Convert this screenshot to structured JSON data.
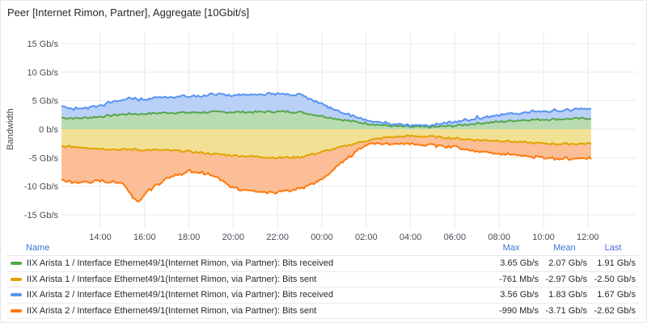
{
  "panel": {
    "title": "Peer [Internet Rimon, Partner], Aggregate [10Gbit/s]"
  },
  "chart_data": {
    "type": "area",
    "stacked": true,
    "title": "Peer [Internet Rimon, Partner], Aggregate [10Gbit/s]",
    "ylabel": "Bandwidth",
    "xlabel": "",
    "unit": "Gb/s",
    "ylim": [
      -17,
      17
    ],
    "grid": true,
    "legend_position": "bottom",
    "y_ticks": [
      15,
      10,
      5,
      0,
      -5,
      -10,
      -15
    ],
    "y_tick_labels": [
      "15 Gb/s",
      "10 Gb/s",
      "5 Gb/s",
      "0 b/s",
      "-5 Gb/s",
      "-10 Gb/s",
      "-15 Gb/s"
    ],
    "x_hours": [
      12.25,
      13,
      14,
      15,
      15.6,
      15.8,
      16,
      17,
      18,
      19,
      20,
      21,
      22,
      23,
      24,
      25,
      26,
      27,
      28,
      29,
      30,
      31,
      32,
      33,
      34,
      35,
      36.15
    ],
    "x_ticks": [
      14,
      16,
      18,
      20,
      22,
      24,
      26,
      28,
      30,
      32,
      34,
      36
    ],
    "x_tick_labels": [
      "14:00",
      "16:00",
      "18:00",
      "20:00",
      "22:00",
      "00:00",
      "02:00",
      "04:00",
      "06:00",
      "08:00",
      "10:00",
      "12:00"
    ],
    "series": [
      {
        "name": "IIX Arista 1 / Interface Ethernet49/1(Internet Rimon, via Partner): Bits received",
        "color": "#56a64b",
        "fill": "#b5d9ae",
        "stack": "positive",
        "values": [
          2.0,
          1.9,
          2.2,
          2.6,
          2.7,
          2.6,
          2.7,
          2.9,
          2.9,
          3.0,
          3.0,
          3.0,
          3.1,
          3.0,
          2.3,
          1.6,
          1.0,
          0.6,
          0.4,
          0.4,
          0.6,
          1.0,
          1.3,
          1.6,
          1.7,
          1.8,
          1.9
        ]
      },
      {
        "name": "IIX Arista 1 / Interface Ethernet49/1(Internet Rimon, via Partner): Bits sent",
        "color": "#e0a400",
        "fill": "#f1de8e",
        "stack": "negative",
        "values": [
          -3.0,
          -3.1,
          -3.4,
          -3.6,
          -3.5,
          -3.7,
          -3.6,
          -3.7,
          -3.9,
          -4.3,
          -4.6,
          -4.8,
          -5.0,
          -4.9,
          -4.0,
          -3.0,
          -2.0,
          -1.4,
          -1.2,
          -1.3,
          -1.6,
          -1.9,
          -2.0,
          -2.3,
          -2.5,
          -2.6,
          -2.5
        ]
      },
      {
        "name": "IIX Arista 2 / Interface Ethernet49/1(Internet Rimon, via Partner): Bits received",
        "color": "#5794f2",
        "fill": "#b5cef7",
        "stack": "positive",
        "values": [
          2.0,
          1.6,
          2.0,
          2.6,
          2.7,
          2.6,
          2.6,
          2.8,
          2.9,
          3.0,
          3.0,
          3.1,
          3.2,
          3.1,
          2.2,
          1.2,
          0.7,
          0.3,
          0.2,
          0.3,
          0.7,
          1.0,
          1.2,
          1.3,
          1.5,
          1.5,
          1.7
        ]
      },
      {
        "name": "IIX Arista 2 / Interface Ethernet49/1(Internet Rimon, via Partner): Bits sent",
        "color": "#ff780a",
        "fill": "#fcba90",
        "stack": "negative",
        "values": [
          -6.0,
          -6.2,
          -5.6,
          -5.8,
          -9.2,
          -9.0,
          -7.6,
          -5.0,
          -3.4,
          -3.7,
          -5.6,
          -6.2,
          -6.0,
          -5.5,
          -4.8,
          -2.6,
          -0.6,
          -1.2,
          -1.4,
          -1.5,
          -1.4,
          -2.0,
          -2.3,
          -2.3,
          -2.5,
          -2.6,
          -2.6
        ]
      }
    ]
  },
  "legend": {
    "headers": {
      "name": "Name",
      "max": "Max",
      "mean": "Mean",
      "last": "Last"
    },
    "rows": [
      {
        "name": "IIX Arista 1 / Interface Ethernet49/1(Internet Rimon, via Partner): Bits received",
        "color": "#56a64b",
        "max": "3.65 Gb/s",
        "mean": "2.07 Gb/s",
        "last": "1.91 Gb/s"
      },
      {
        "name": "IIX Arista 1 / Interface Ethernet49/1(Internet Rimon, via Partner): Bits sent",
        "color": "#e0a400",
        "max": "-761 Mb/s",
        "mean": "-2.97 Gb/s",
        "last": "-2.50 Gb/s"
      },
      {
        "name": "IIX Arista 2 / Interface Ethernet49/1(Internet Rimon, via Partner): Bits received",
        "color": "#5794f2",
        "max": "3.56 Gb/s",
        "mean": "1.83 Gb/s",
        "last": "1.67 Gb/s"
      },
      {
        "name": "IIX Arista 2 / Interface Ethernet49/1(Internet Rimon, via Partner): Bits sent",
        "color": "#ff780a",
        "max": "-990 Mb/s",
        "mean": "-3.71 Gb/s",
        "last": "-2.62 Gb/s"
      }
    ]
  }
}
